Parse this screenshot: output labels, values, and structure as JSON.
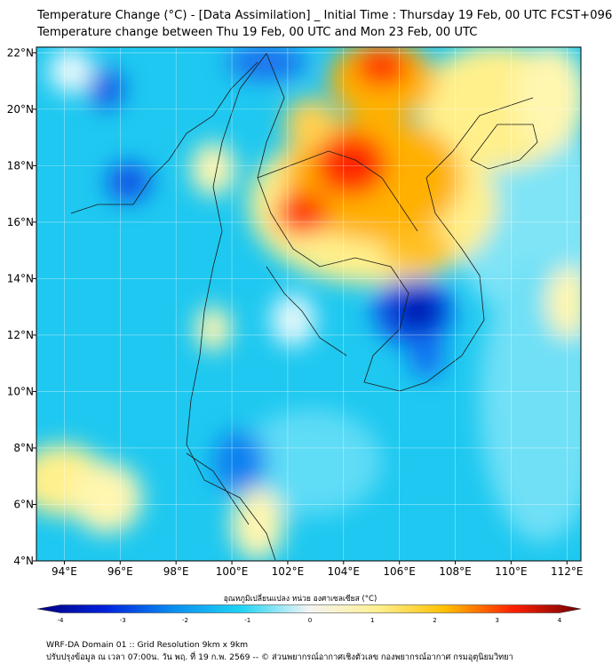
{
  "header": {
    "title_line1": "Temperature Change (°C) - [Data Assimilation] _ Initial Time : Thursday 19 Feb, 00 UTC FCST+096",
    "title_line2": "Temperature change between Thu 19 Feb, 00 UTC and Mon 23 Feb, 00 UTC"
  },
  "map": {
    "lon_range": [
      93,
      112.5
    ],
    "lat_range": [
      4,
      22.2
    ],
    "x_ticks": [
      "94°E",
      "96°E",
      "98°E",
      "100°E",
      "102°E",
      "104°E",
      "106°E",
      "108°E",
      "110°E",
      "112°E"
    ],
    "y_ticks": [
      "22°N",
      "20°N",
      "18°N",
      "16°N",
      "14°N",
      "12°N",
      "10°N",
      "8°N",
      "6°N",
      "4°N"
    ],
    "colors": {
      "cold_dark": "#0000a0",
      "cold": "#0a55e6",
      "cool": "#1ec8f0",
      "neutral": "#f2f2f2",
      "warm_light": "#fff08c",
      "warm": "#ffb000",
      "hot": "#ff2000",
      "hot_dark": "#7a0000"
    }
  },
  "colorbar": {
    "title": "อุณหภูมิเปลี่ยนแปลง หน่วย องศาเซลเซียส (°C)",
    "min": -4,
    "max": 4,
    "ticks": [
      "-4",
      "-3",
      "-2",
      "-1",
      "0",
      "1",
      "2",
      "3",
      "4"
    ]
  },
  "footer": {
    "line1": "WRF-DA Domain 01 :: Grid Resolution 9km x 9km",
    "line2": "ปรับปรุงข้อมูล ณ เวลา 07:00น. วัน พฤ. ที่ 19 ก.พ. 2569 -- © ส่วนพยากรณ์อากาศเชิงตัวเลข กองพยากรณ์อากาศ กรมอุตุนิยมวิทยา"
  }
}
